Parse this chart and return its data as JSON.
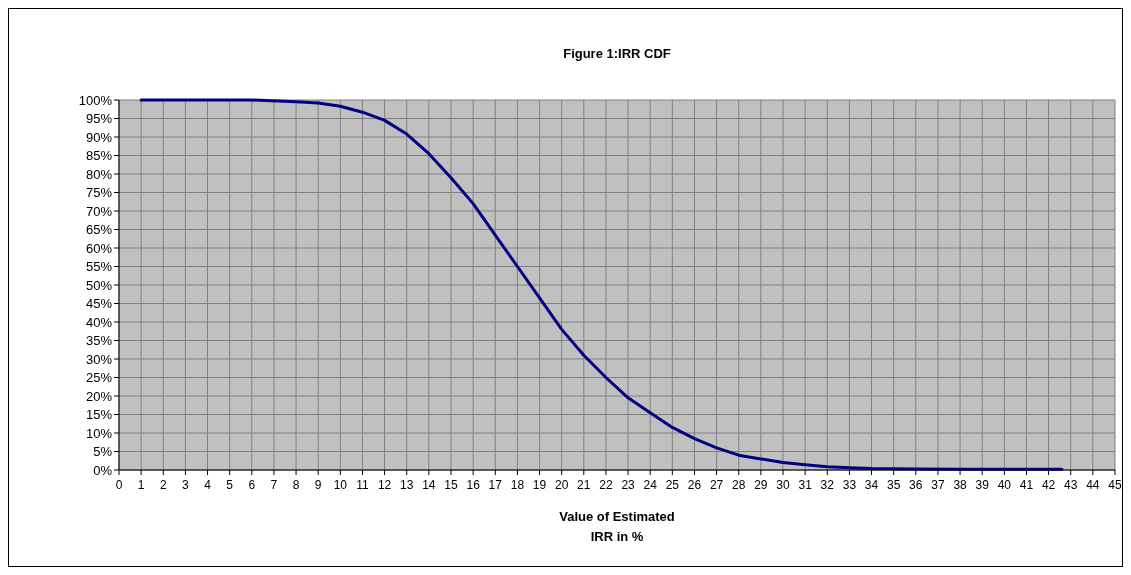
{
  "chart_data": {
    "type": "line",
    "title": "Figure 1:IRR CDF",
    "xlabel": "Value of Estimated\nIRR in %",
    "x": [
      1,
      3,
      6,
      8,
      9,
      10,
      11,
      12,
      13,
      14,
      15,
      16,
      17,
      18,
      19,
      20,
      21,
      22,
      23,
      24,
      25,
      26,
      27,
      28,
      29,
      30,
      31,
      32,
      33,
      34,
      36,
      38,
      40,
      42.6
    ],
    "series": [
      {
        "color": "#000080",
        "values": [
          100,
          100,
          100,
          99.5,
          99.2,
          98.3,
          96.7,
          94.5,
          90.8,
          85.5,
          79,
          72,
          63.5,
          55,
          46.5,
          38,
          31,
          25,
          19.5,
          15.5,
          11.5,
          8.5,
          6,
          4,
          3,
          2,
          1.4,
          0.9,
          0.6,
          0.4,
          0.3,
          0.2,
          0.2,
          0.2
        ]
      }
    ],
    "xlim": [
      0,
      45
    ],
    "xticks": [
      0,
      1,
      2,
      3,
      4,
      5,
      6,
      7,
      8,
      9,
      10,
      11,
      12,
      13,
      14,
      15,
      16,
      17,
      18,
      19,
      20,
      21,
      22,
      23,
      24,
      25,
      26,
      27,
      28,
      29,
      30,
      31,
      32,
      33,
      34,
      35,
      36,
      37,
      38,
      39,
      40,
      41,
      42,
      43,
      44,
      45
    ],
    "ylim": [
      0,
      100
    ],
    "yticks": [
      {
        "value": 0,
        "label": "0%"
      },
      {
        "value": 5,
        "label": "5%"
      },
      {
        "value": 10,
        "label": "10%"
      },
      {
        "value": 15,
        "label": "15%"
      },
      {
        "value": 20,
        "label": "20%"
      },
      {
        "value": 25,
        "label": "25%"
      },
      {
        "value": 30,
        "label": "30%"
      },
      {
        "value": 35,
        "label": "35%"
      },
      {
        "value": 40,
        "label": "40%"
      },
      {
        "value": 45,
        "label": "45%"
      },
      {
        "value": 50,
        "label": "50%"
      },
      {
        "value": 55,
        "label": "55%"
      },
      {
        "value": 60,
        "label": "60%"
      },
      {
        "value": 65,
        "label": "65%"
      },
      {
        "value": 70,
        "label": "70%"
      },
      {
        "value": 75,
        "label": "75%"
      },
      {
        "value": 80,
        "label": "80%"
      },
      {
        "value": 85,
        "label": "85%"
      },
      {
        "value": 90,
        "label": "90%"
      },
      {
        "value": 95,
        "label": "95%"
      },
      {
        "value": 100,
        "label": "100%"
      }
    ],
    "grid": true,
    "marker": "none",
    "line_style": "solid"
  }
}
